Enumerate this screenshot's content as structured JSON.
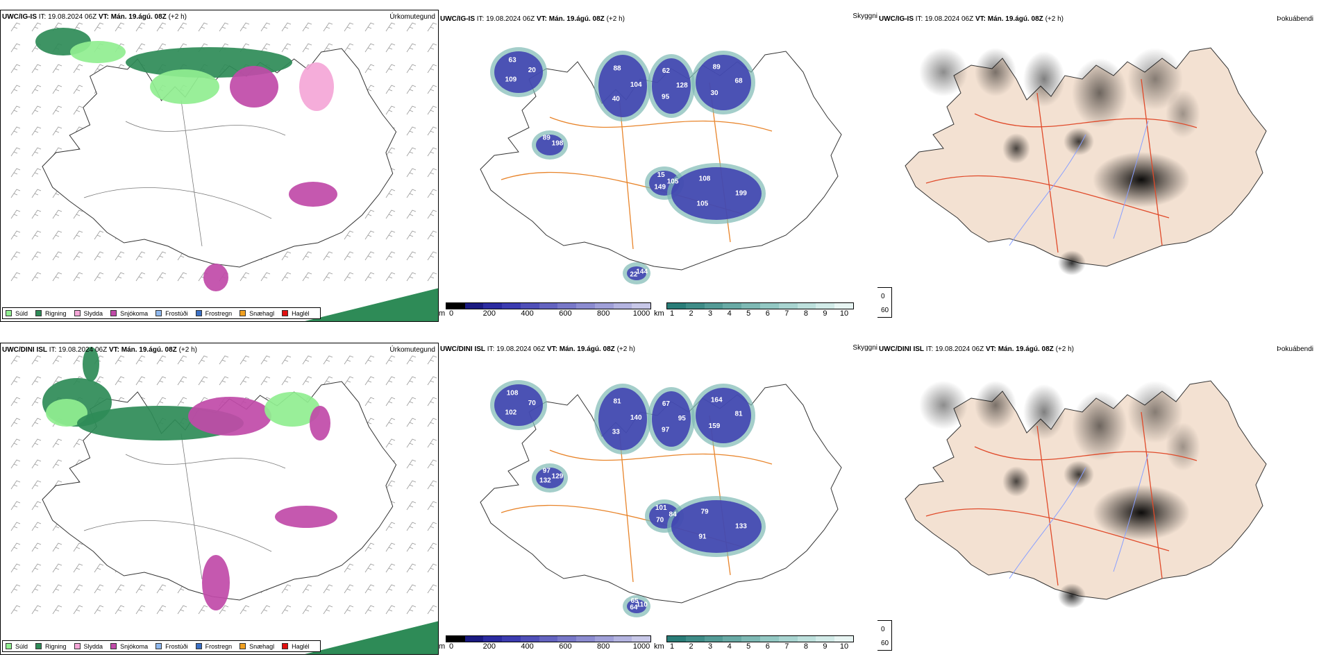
{
  "rows": [
    {
      "model": "UWC/IG-IS",
      "it_label": "IT:",
      "it_value": "19.08.2024 06Z",
      "vt_label": "VT:",
      "vt_value": "Mán. 19.ágú. 08Z",
      "lead": "(+2 h)",
      "cloud_labels": [
        "20",
        "40",
        "62",
        "68",
        "149",
        "108",
        "198",
        "22",
        "63",
        "104",
        "95",
        "89",
        "105",
        "105",
        "89",
        "144",
        "109",
        "88",
        "128",
        "30",
        "15",
        "199"
      ]
    },
    {
      "model": "UWC/DINI ISL",
      "it_label": "IT:",
      "it_value": "19.08.2024 06Z",
      "vt_label": "VT:",
      "vt_value": "Mán. 19.ágú. 08Z",
      "lead": "(+2 h)",
      "cloud_labels": [
        "70",
        "33",
        "67",
        "81",
        "70",
        "79",
        "129",
        "64",
        "108",
        "140",
        "97",
        "164",
        "84",
        "91",
        "97",
        "110",
        "102",
        "81",
        "95",
        "159",
        "101",
        "133",
        "132",
        "65"
      ]
    }
  ],
  "panel_titles": {
    "precip": "Úrkomutegund",
    "cloud": "Skyggni",
    "fog": "Þokuábendi"
  },
  "precip_legend": [
    {
      "label": "Súld",
      "color": "#90ee90"
    },
    {
      "label": "Rigning",
      "color": "#2e8b57"
    },
    {
      "label": "Slydda",
      "color": "#f4a6d7"
    },
    {
      "label": "Snjókoma",
      "color": "#c04aa8"
    },
    {
      "label": "Frostúði",
      "color": "#8fb8ee"
    },
    {
      "label": "Frostregn",
      "color": "#3a6fc4"
    },
    {
      "label": "Snæhagl",
      "color": "#f0a020"
    },
    {
      "label": "Haglél",
      "color": "#e01010"
    }
  ],
  "cloud_base_scale": {
    "unit": "m",
    "ticks": [
      "0",
      "200",
      "400",
      "600",
      "800",
      "1000"
    ],
    "colors": [
      "#000000",
      "#1a1a80",
      "#2b2ba0",
      "#3c3cb0",
      "#5050b8",
      "#6464c0",
      "#7878c8",
      "#8c8cd0",
      "#a0a0d8",
      "#b4b4e0",
      "#c8c8e8"
    ]
  },
  "visibility_scale": {
    "unit": "km",
    "ticks": [
      "1",
      "2",
      "3",
      "4",
      "5",
      "6",
      "7",
      "8",
      "9",
      "10"
    ],
    "colors": [
      "#2a7d78",
      "#3f8c87",
      "#549b96",
      "#69aaa5",
      "#7eb9b4",
      "#93c8c3",
      "#a8d4d0",
      "#bde0dc",
      "#d2ebe8",
      "#e8f5f3"
    ]
  },
  "fog_legend": [
    {
      "label": "0",
      "color": "#000000"
    },
    {
      "label": "60",
      "color": "#ffffff"
    }
  ]
}
